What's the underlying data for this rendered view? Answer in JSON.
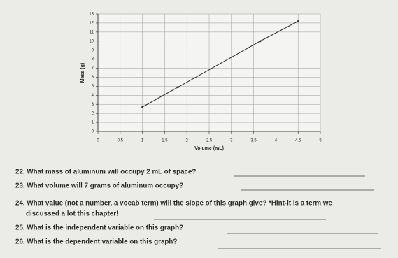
{
  "chart_data": {
    "type": "line",
    "x_label": "Volume (mL)",
    "y_label": "Mass (g)",
    "x": [
      1,
      1.8,
      3.65,
      4.5
    ],
    "values": [
      2.7,
      4.9,
      10,
      12.2
    ],
    "color": "#333333",
    "xlim": [
      0,
      5
    ],
    "ylim": [
      0,
      13
    ],
    "xticks": [
      0,
      0.5,
      1,
      1.5,
      2,
      2.5,
      3,
      3.5,
      4,
      4.5,
      5
    ],
    "yticks": [
      0,
      1,
      2,
      3,
      4,
      5,
      6,
      7,
      8,
      9,
      10,
      11,
      12,
      13
    ],
    "grid": true
  },
  "questions": [
    "22. What mass of aluminum will occupy 2 mL of space?",
    "23. What volume will 7 grams of aluminum occupy?",
    "24. What value (not a number, a vocab term) will the slope of this graph give? *Hint-it is a term we",
    "discussed a lot this chapter!",
    "25. What is the independent variable on this graph?",
    "26. What is the dependent variable on this graph?"
  ]
}
